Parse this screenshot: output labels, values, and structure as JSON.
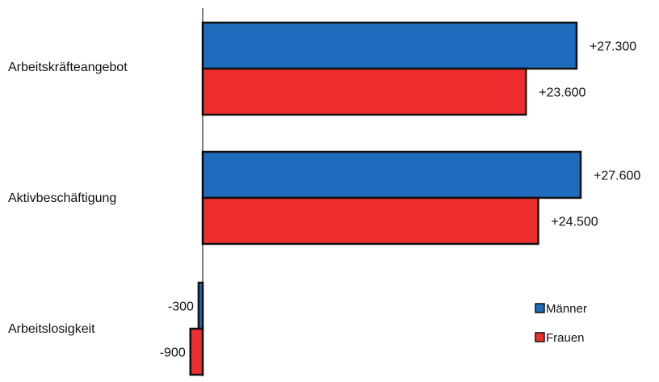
{
  "chart_data": {
    "type": "bar",
    "orientation": "horizontal",
    "categories": [
      "Arbeitskräfteangebot",
      "Aktivbeschäftigung",
      "Arbeitslosigkeit"
    ],
    "series": [
      {
        "name": "Männer",
        "values": [
          27300,
          27600,
          -300
        ],
        "labels": [
          "+27.300",
          "+27.600",
          "-300"
        ],
        "color": "#1f6cbf"
      },
      {
        "name": "Frauen",
        "values": [
          23600,
          24500,
          -900
        ],
        "labels": [
          "+23.600",
          "+24.500",
          "-900"
        ],
        "color": "#ee2e2e"
      }
    ],
    "title": "",
    "xlabel": "",
    "ylabel": "",
    "grid": false,
    "legend_position": "bottom-right"
  }
}
